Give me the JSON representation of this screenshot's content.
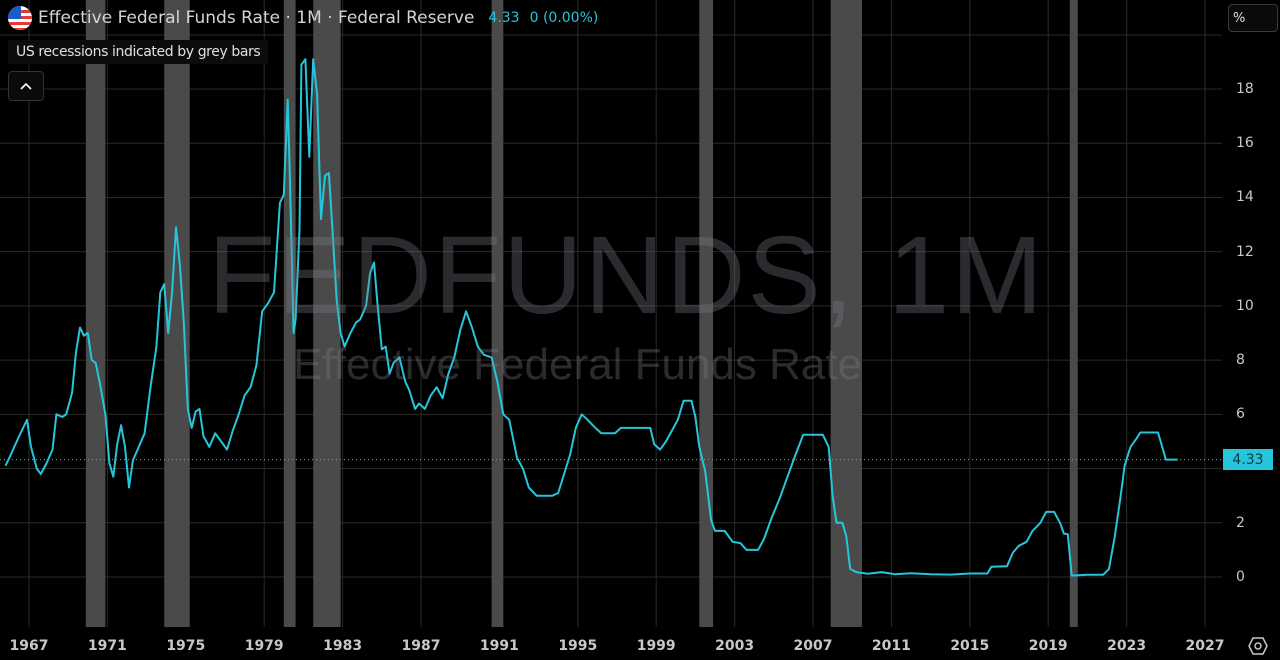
{
  "header": {
    "title": "Effective Federal Funds Rate · 1M · Federal Reserve",
    "value": "4.33",
    "change": "0 (0.00%)",
    "flag_icon": "us-flag-icon"
  },
  "legend_note": "US recessions indicated by grey bars",
  "collapse_button": "^",
  "unit_box": "%",
  "watermark": {
    "symbol": "FEDFUNDS, 1M",
    "name": "Effective Federal Funds Rate"
  },
  "price_tag": "4.33",
  "colors": {
    "line": "#26c6da",
    "recession": "#4a4a4a",
    "grid": "#2a2a2a",
    "background": "#000000"
  },
  "chart_data": {
    "type": "line",
    "title": "Effective Federal Funds Rate · 1M · Federal Reserve",
    "xlabel": "",
    "ylabel": "%",
    "xlim": [
      1965.8,
      2029.8
    ],
    "ylim": [
      -0.9,
      19.6
    ],
    "x_ticks": [
      "1967",
      "1971",
      "1975",
      "1979",
      "1983",
      "1987",
      "1991",
      "1995",
      "1999",
      "2003",
      "2007",
      "2011",
      "2015",
      "2019",
      "2023",
      "2027"
    ],
    "y_ticks": [
      0,
      2,
      4,
      6,
      8,
      10,
      12,
      14,
      16,
      18
    ],
    "y_tick_labels": [
      "0",
      "2",
      "",
      "6",
      "8",
      "10",
      "12",
      "14",
      "16",
      "18"
    ],
    "last_value": 4.33,
    "grid": true,
    "recessions": [
      [
        1969.9,
        1970.9
      ],
      [
        1973.9,
        1975.2
      ],
      [
        1980.0,
        1980.6
      ],
      [
        1981.5,
        1982.9
      ],
      [
        1990.6,
        1991.2
      ],
      [
        2001.2,
        2001.9
      ],
      [
        2007.9,
        2009.5
      ],
      [
        2020.1,
        2020.3
      ]
    ],
    "series": [
      {
        "name": "FEDFUNDS",
        "points": [
          [
            1965.8,
            4.1
          ],
          [
            1966.0,
            4.4
          ],
          [
            1966.5,
            5.2
          ],
          [
            1966.9,
            5.8
          ],
          [
            1967.1,
            4.8
          ],
          [
            1967.4,
            4.0
          ],
          [
            1967.6,
            3.8
          ],
          [
            1967.9,
            4.2
          ],
          [
            1968.2,
            4.7
          ],
          [
            1968.4,
            6.0
          ],
          [
            1968.7,
            5.9
          ],
          [
            1968.9,
            6.0
          ],
          [
            1969.2,
            6.8
          ],
          [
            1969.4,
            8.3
          ],
          [
            1969.6,
            9.2
          ],
          [
            1969.8,
            8.9
          ],
          [
            1970.0,
            9.0
          ],
          [
            1970.2,
            8.0
          ],
          [
            1970.4,
            7.9
          ],
          [
            1970.6,
            7.2
          ],
          [
            1970.9,
            6.0
          ],
          [
            1971.1,
            4.2
          ],
          [
            1971.3,
            3.7
          ],
          [
            1971.5,
            4.9
          ],
          [
            1971.7,
            5.6
          ],
          [
            1971.9,
            4.8
          ],
          [
            1972.1,
            3.3
          ],
          [
            1972.3,
            4.3
          ],
          [
            1972.6,
            4.8
          ],
          [
            1972.9,
            5.3
          ],
          [
            1973.2,
            7.0
          ],
          [
            1973.5,
            8.5
          ],
          [
            1973.7,
            10.5
          ],
          [
            1973.9,
            10.8
          ],
          [
            1974.1,
            9.0
          ],
          [
            1974.3,
            10.5
          ],
          [
            1974.5,
            12.9
          ],
          [
            1974.7,
            11.5
          ],
          [
            1974.9,
            9.4
          ],
          [
            1975.1,
            6.2
          ],
          [
            1975.3,
            5.5
          ],
          [
            1975.5,
            6.1
          ],
          [
            1975.7,
            6.2
          ],
          [
            1975.9,
            5.2
          ],
          [
            1976.2,
            4.8
          ],
          [
            1976.5,
            5.3
          ],
          [
            1976.8,
            5.0
          ],
          [
            1977.1,
            4.7
          ],
          [
            1977.4,
            5.4
          ],
          [
            1977.7,
            6.0
          ],
          [
            1978.0,
            6.7
          ],
          [
            1978.3,
            7.0
          ],
          [
            1978.6,
            7.8
          ],
          [
            1978.9,
            9.8
          ],
          [
            1979.2,
            10.1
          ],
          [
            1979.5,
            10.5
          ],
          [
            1979.8,
            13.8
          ],
          [
            1980.0,
            14.1
          ],
          [
            1980.2,
            17.6
          ],
          [
            1980.3,
            15.0
          ],
          [
            1980.5,
            9.0
          ],
          [
            1980.6,
            9.5
          ],
          [
            1980.8,
            12.8
          ],
          [
            1980.9,
            18.9
          ],
          [
            1981.1,
            19.1
          ],
          [
            1981.3,
            15.5
          ],
          [
            1981.5,
            19.1
          ],
          [
            1981.7,
            17.8
          ],
          [
            1981.9,
            13.2
          ],
          [
            1982.1,
            14.8
          ],
          [
            1982.3,
            14.9
          ],
          [
            1982.5,
            12.6
          ],
          [
            1982.7,
            10.2
          ],
          [
            1982.9,
            9.0
          ],
          [
            1983.1,
            8.5
          ],
          [
            1983.4,
            9.0
          ],
          [
            1983.7,
            9.4
          ],
          [
            1983.9,
            9.5
          ],
          [
            1984.2,
            10.0
          ],
          [
            1984.4,
            11.2
          ],
          [
            1984.6,
            11.6
          ],
          [
            1984.8,
            9.9
          ],
          [
            1985.0,
            8.4
          ],
          [
            1985.2,
            8.5
          ],
          [
            1985.4,
            7.5
          ],
          [
            1985.6,
            7.9
          ],
          [
            1985.9,
            8.1
          ],
          [
            1986.2,
            7.2
          ],
          [
            1986.4,
            6.9
          ],
          [
            1986.7,
            6.2
          ],
          [
            1986.9,
            6.4
          ],
          [
            1987.2,
            6.2
          ],
          [
            1987.5,
            6.7
          ],
          [
            1987.8,
            7.0
          ],
          [
            1988.1,
            6.6
          ],
          [
            1988.4,
            7.5
          ],
          [
            1988.7,
            8.1
          ],
          [
            1989.0,
            9.1
          ],
          [
            1989.3,
            9.8
          ],
          [
            1989.6,
            9.2
          ],
          [
            1989.9,
            8.5
          ],
          [
            1990.2,
            8.2
          ],
          [
            1990.6,
            8.1
          ],
          [
            1990.9,
            7.2
          ],
          [
            1991.2,
            6.0
          ],
          [
            1991.5,
            5.8
          ],
          [
            1991.9,
            4.4
          ],
          [
            1992.2,
            4.0
          ],
          [
            1992.5,
            3.3
          ],
          [
            1992.9,
            3.0
          ],
          [
            1993.3,
            3.0
          ],
          [
            1993.7,
            3.0
          ],
          [
            1994.0,
            3.1
          ],
          [
            1994.3,
            3.8
          ],
          [
            1994.6,
            4.5
          ],
          [
            1994.9,
            5.5
          ],
          [
            1995.2,
            6.0
          ],
          [
            1995.5,
            5.8
          ],
          [
            1995.9,
            5.5
          ],
          [
            1996.2,
            5.3
          ],
          [
            1996.6,
            5.3
          ],
          [
            1996.9,
            5.3
          ],
          [
            1997.2,
            5.5
          ],
          [
            1997.6,
            5.5
          ],
          [
            1998.0,
            5.5
          ],
          [
            1998.4,
            5.5
          ],
          [
            1998.7,
            5.5
          ],
          [
            1998.9,
            4.9
          ],
          [
            1999.2,
            4.7
          ],
          [
            1999.5,
            5.0
          ],
          [
            1999.8,
            5.4
          ],
          [
            2000.1,
            5.8
          ],
          [
            2000.4,
            6.5
          ],
          [
            2000.8,
            6.5
          ],
          [
            2001.0,
            5.9
          ],
          [
            2001.2,
            4.8
          ],
          [
            2001.5,
            3.9
          ],
          [
            2001.8,
            2.1
          ],
          [
            2002.0,
            1.7
          ],
          [
            2002.5,
            1.7
          ],
          [
            2002.9,
            1.3
          ],
          [
            2003.3,
            1.25
          ],
          [
            2003.6,
            1.0
          ],
          [
            2004.2,
            1.0
          ],
          [
            2004.5,
            1.4
          ],
          [
            2004.9,
            2.2
          ],
          [
            2005.3,
            2.9
          ],
          [
            2005.7,
            3.7
          ],
          [
            2006.1,
            4.5
          ],
          [
            2006.5,
            5.25
          ],
          [
            2007.0,
            5.25
          ],
          [
            2007.5,
            5.25
          ],
          [
            2007.8,
            4.8
          ],
          [
            2008.0,
            3.0
          ],
          [
            2008.2,
            2.0
          ],
          [
            2008.5,
            2.0
          ],
          [
            2008.7,
            1.5
          ],
          [
            2008.9,
            0.3
          ],
          [
            2009.2,
            0.18
          ],
          [
            2009.8,
            0.12
          ],
          [
            2010.5,
            0.18
          ],
          [
            2011.2,
            0.1
          ],
          [
            2012.0,
            0.14
          ],
          [
            2013.0,
            0.1
          ],
          [
            2014.0,
            0.09
          ],
          [
            2015.0,
            0.13
          ],
          [
            2015.9,
            0.13
          ],
          [
            2016.1,
            0.38
          ],
          [
            2016.9,
            0.4
          ],
          [
            2017.2,
            0.9
          ],
          [
            2017.5,
            1.15
          ],
          [
            2017.9,
            1.3
          ],
          [
            2018.2,
            1.7
          ],
          [
            2018.6,
            2.0
          ],
          [
            2018.9,
            2.4
          ],
          [
            2019.3,
            2.4
          ],
          [
            2019.6,
            2.0
          ],
          [
            2019.8,
            1.6
          ],
          [
            2020.0,
            1.58
          ],
          [
            2020.2,
            0.05
          ],
          [
            2021.0,
            0.08
          ],
          [
            2021.8,
            0.08
          ],
          [
            2022.1,
            0.3
          ],
          [
            2022.4,
            1.5
          ],
          [
            2022.7,
            3.0
          ],
          [
            2022.9,
            4.1
          ],
          [
            2023.2,
            4.8
          ],
          [
            2023.5,
            5.1
          ],
          [
            2023.7,
            5.33
          ],
          [
            2024.6,
            5.33
          ],
          [
            2024.9,
            4.6
          ],
          [
            2025.0,
            4.33
          ],
          [
            2025.6,
            4.33
          ]
        ]
      }
    ]
  }
}
